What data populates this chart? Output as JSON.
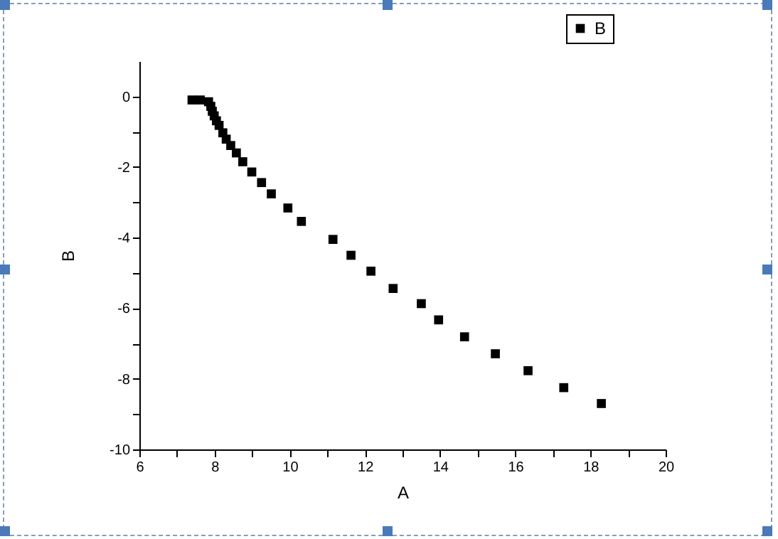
{
  "chart_data": {
    "type": "scatter",
    "xlabel": "A",
    "ylabel": "B",
    "xlim": [
      6,
      20
    ],
    "ylim": [
      -10,
      1
    ],
    "xticks": [
      6,
      {
        "value": 7,
        "label": null
      },
      8,
      {
        "value": 9,
        "label": null
      },
      10,
      {
        "value": 11,
        "label": null
      },
      12,
      {
        "value": 13,
        "label": null
      },
      14,
      {
        "value": 15,
        "label": null
      },
      16,
      {
        "value": 17,
        "label": null
      },
      18,
      {
        "value": 19,
        "label": null
      },
      20
    ],
    "yticks": [
      -10,
      {
        "value": -9,
        "label": null
      },
      -8,
      {
        "value": -7,
        "label": null
      },
      -6,
      {
        "value": -5,
        "label": null
      },
      -4,
      {
        "value": -3,
        "label": null
      },
      -2,
      {
        "value": -1,
        "label": null
      },
      0
    ],
    "marker": "square",
    "legend": "top right",
    "grid": false,
    "series": [
      {
        "name": "B",
        "color": "#000000",
        "x": [
          7.4,
          7.62,
          7.84,
          7.9,
          7.94,
          7.99,
          8.05,
          8.12,
          8.22,
          8.31,
          8.43,
          8.58,
          8.75,
          8.99,
          9.25,
          9.51,
          9.95,
          10.31,
          11.15,
          11.63,
          12.16,
          12.75,
          13.5,
          13.96,
          14.65,
          15.47,
          16.34,
          17.29,
          18.29
        ],
        "values": [
          -0.1,
          -0.1,
          -0.15,
          -0.28,
          -0.42,
          -0.55,
          -0.69,
          -0.82,
          -1.03,
          -1.21,
          -1.39,
          -1.6,
          -1.85,
          -2.14,
          -2.44,
          -2.76,
          -3.16,
          -3.54,
          -4.05,
          -4.5,
          -4.95,
          -5.44,
          -5.87,
          -6.33,
          -6.81,
          -7.29,
          -7.77,
          -8.25,
          -8.7
        ]
      }
    ]
  }
}
